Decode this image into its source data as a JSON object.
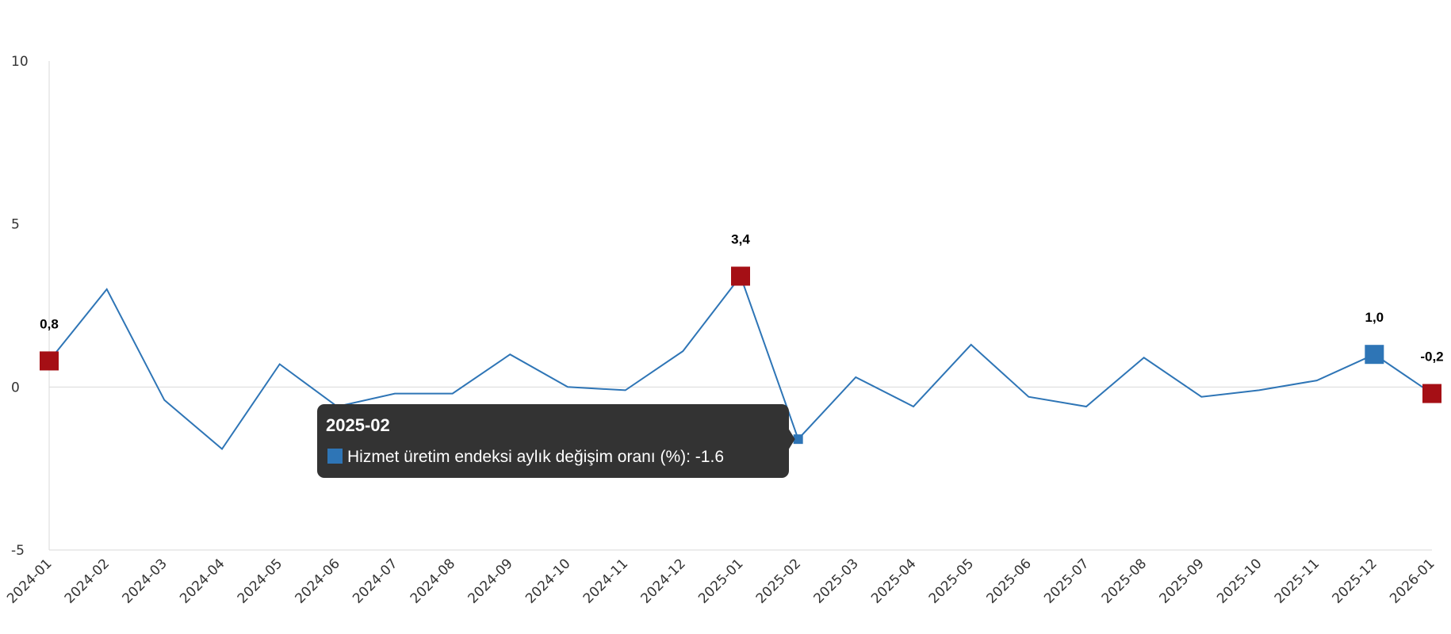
{
  "colors": {
    "line": "#2e75b6",
    "highlight_red": "#a50f15",
    "highlight_blue": "#2e75b6",
    "tooltip_bg": "#333333",
    "axis": "#d9d9d9",
    "zero_line": "#d9d9d9"
  },
  "chart_data": {
    "type": "line",
    "title": "",
    "xlabel": "",
    "ylabel": "",
    "ylim": [
      -5,
      10
    ],
    "yticks": [
      "10",
      "5",
      "0",
      "-5"
    ],
    "ytick_values": [
      10,
      5,
      0,
      -5
    ],
    "grid": false,
    "categories": [
      "2024-01",
      "2024-02",
      "2024-03",
      "2024-04",
      "2024-05",
      "2024-06",
      "2024-07",
      "2024-08",
      "2024-09",
      "2024-10",
      "2024-11",
      "2024-12",
      "2025-01",
      "2025-02",
      "2025-03",
      "2025-04",
      "2025-05",
      "2025-06",
      "2025-07",
      "2025-08",
      "2025-09",
      "2025-10",
      "2025-11",
      "2025-12",
      "2026-01"
    ],
    "series": [
      {
        "name": "Hizmet üretim endeksi aylık değişim oranı (%)",
        "values": [
          0.8,
          3.0,
          -0.4,
          -1.9,
          0.7,
          -0.6,
          -0.2,
          -0.2,
          1.0,
          0.0,
          -0.1,
          1.1,
          3.4,
          -1.6,
          0.3,
          -0.6,
          1.3,
          -0.3,
          -0.6,
          0.9,
          -0.3,
          -0.1,
          0.2,
          1.0,
          -0.2
        ]
      }
    ],
    "highlights": [
      {
        "index": 0,
        "label": "0,8",
        "color": "red"
      },
      {
        "index": 12,
        "label": "3,4",
        "color": "red"
      },
      {
        "index": 23,
        "label": "1,0",
        "color": "blue"
      },
      {
        "index": 24,
        "label": "-0,2",
        "color": "red"
      }
    ],
    "hover": {
      "index": 13,
      "title": "2025-02",
      "text": "Hizmet üretim endeksi aylık değişim oranı (%): -1.6"
    }
  }
}
